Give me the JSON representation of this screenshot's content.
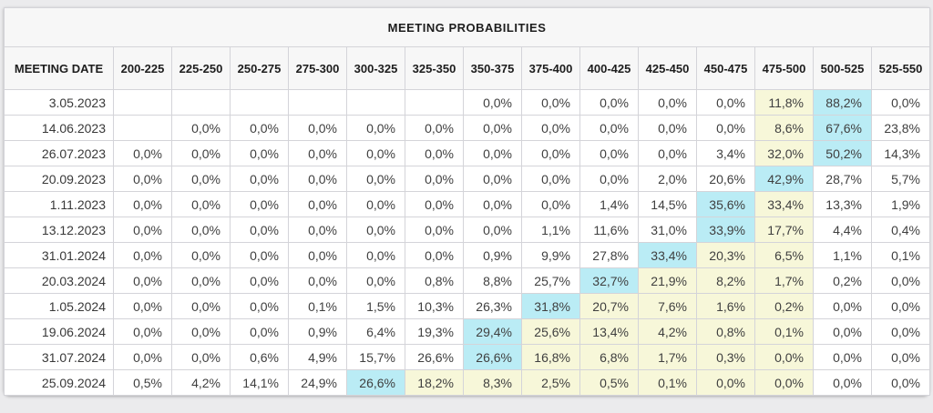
{
  "colors": {
    "max_highlight": "#baecf5",
    "band_highlight": "#f7f7d9",
    "header_bg": "#f7f7f7",
    "border": "#d4d4d9",
    "page_bg": "#ebebed"
  },
  "chart_data": {
    "type": "table",
    "title": "MEETING PROBABILITIES",
    "columns": [
      "MEETING DATE",
      "200-225",
      "225-250",
      "250-275",
      "275-300",
      "300-325",
      "325-350",
      "350-375",
      "375-400",
      "400-425",
      "425-450",
      "450-475",
      "475-500",
      "500-525",
      "525-550"
    ],
    "rows": [
      {
        "date": "3.05.2023",
        "values": [
          "",
          "",
          "",
          "",
          "",
          "",
          "0,0%",
          "0,0%",
          "0,0%",
          "0,0%",
          "0,0%",
          "11,8%",
          "88,2%",
          "0,0%"
        ],
        "highlight": {
          "max": 12,
          "band": [
            11
          ]
        }
      },
      {
        "date": "14.06.2023",
        "values": [
          "",
          "0,0%",
          "0,0%",
          "0,0%",
          "0,0%",
          "0,0%",
          "0,0%",
          "0,0%",
          "0,0%",
          "0,0%",
          "0,0%",
          "8,6%",
          "67,6%",
          "23,8%"
        ],
        "highlight": {
          "max": 12,
          "band": [
            11
          ]
        }
      },
      {
        "date": "26.07.2023",
        "values": [
          "0,0%",
          "0,0%",
          "0,0%",
          "0,0%",
          "0,0%",
          "0,0%",
          "0,0%",
          "0,0%",
          "0,0%",
          "0,0%",
          "3,4%",
          "32,0%",
          "50,2%",
          "14,3%"
        ],
        "highlight": {
          "max": 12,
          "band": [
            11
          ]
        }
      },
      {
        "date": "20.09.2023",
        "values": [
          "0,0%",
          "0,0%",
          "0,0%",
          "0,0%",
          "0,0%",
          "0,0%",
          "0,0%",
          "0,0%",
          "0,0%",
          "2,0%",
          "20,6%",
          "42,9%",
          "28,7%",
          "5,7%"
        ],
        "highlight": {
          "max": 11,
          "band": []
        }
      },
      {
        "date": "1.11.2023",
        "values": [
          "0,0%",
          "0,0%",
          "0,0%",
          "0,0%",
          "0,0%",
          "0,0%",
          "0,0%",
          "0,0%",
          "1,4%",
          "14,5%",
          "35,6%",
          "33,4%",
          "13,3%",
          "1,9%"
        ],
        "highlight": {
          "max": 10,
          "band": [
            11
          ]
        }
      },
      {
        "date": "13.12.2023",
        "values": [
          "0,0%",
          "0,0%",
          "0,0%",
          "0,0%",
          "0,0%",
          "0,0%",
          "0,0%",
          "1,1%",
          "11,6%",
          "31,0%",
          "33,9%",
          "17,7%",
          "4,4%",
          "0,4%"
        ],
        "highlight": {
          "max": 10,
          "band": [
            11
          ]
        }
      },
      {
        "date": "31.01.2024",
        "values": [
          "0,0%",
          "0,0%",
          "0,0%",
          "0,0%",
          "0,0%",
          "0,0%",
          "0,9%",
          "9,9%",
          "27,8%",
          "33,4%",
          "20,3%",
          "6,5%",
          "1,1%",
          "0,1%"
        ],
        "highlight": {
          "max": 9,
          "band": [
            10,
            11
          ]
        }
      },
      {
        "date": "20.03.2024",
        "values": [
          "0,0%",
          "0,0%",
          "0,0%",
          "0,0%",
          "0,0%",
          "0,8%",
          "8,8%",
          "25,7%",
          "32,7%",
          "21,9%",
          "8,2%",
          "1,7%",
          "0,2%",
          "0,0%"
        ],
        "highlight": {
          "max": 8,
          "band": [
            9,
            10,
            11
          ]
        }
      },
      {
        "date": "1.05.2024",
        "values": [
          "0,0%",
          "0,0%",
          "0,0%",
          "0,1%",
          "1,5%",
          "10,3%",
          "26,3%",
          "31,8%",
          "20,7%",
          "7,6%",
          "1,6%",
          "0,2%",
          "0,0%",
          "0,0%"
        ],
        "highlight": {
          "max": 7,
          "band": [
            8,
            9,
            10,
            11
          ]
        }
      },
      {
        "date": "19.06.2024",
        "values": [
          "0,0%",
          "0,0%",
          "0,0%",
          "0,9%",
          "6,4%",
          "19,3%",
          "29,4%",
          "25,6%",
          "13,4%",
          "4,2%",
          "0,8%",
          "0,1%",
          "0,0%",
          "0,0%"
        ],
        "highlight": {
          "max": 6,
          "band": [
            7,
            8,
            9,
            10,
            11
          ]
        }
      },
      {
        "date": "31.07.2024",
        "values": [
          "0,0%",
          "0,0%",
          "0,6%",
          "4,9%",
          "15,7%",
          "26,6%",
          "26,6%",
          "16,8%",
          "6,8%",
          "1,7%",
          "0,3%",
          "0,0%",
          "0,0%",
          "0,0%"
        ],
        "highlight": {
          "max": 6,
          "band": [
            7,
            8,
            9,
            10,
            11
          ]
        }
      },
      {
        "date": "25.09.2024",
        "values": [
          "0,5%",
          "4,2%",
          "14,1%",
          "24,9%",
          "26,6%",
          "18,2%",
          "8,3%",
          "2,5%",
          "0,5%",
          "0,1%",
          "0,0%",
          "0,0%",
          "0,0%",
          "0,0%"
        ],
        "highlight": {
          "max": 4,
          "band": [
            5,
            6,
            7,
            8,
            9,
            10,
            11
          ]
        }
      }
    ]
  }
}
